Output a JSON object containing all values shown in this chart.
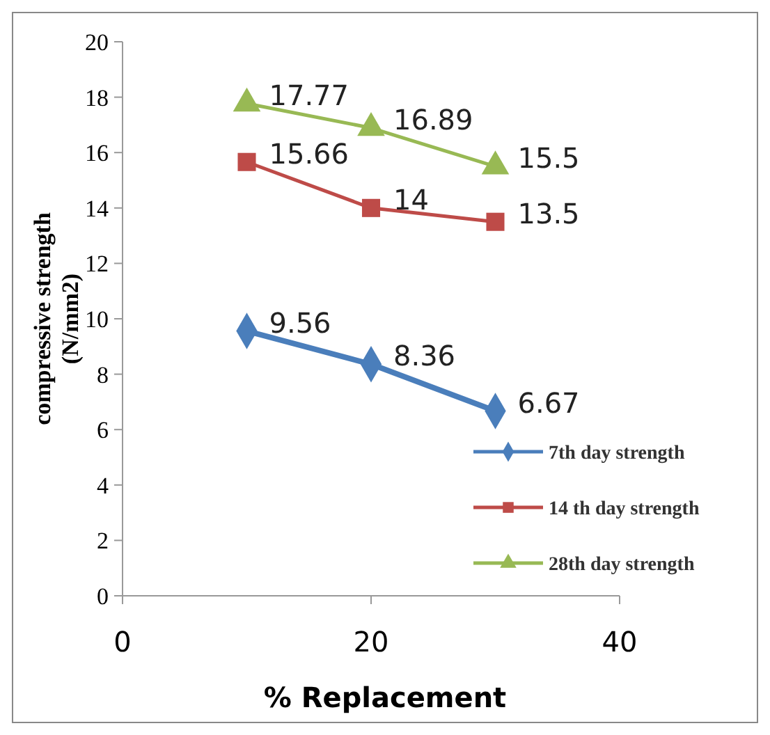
{
  "chart_data": {
    "type": "line",
    "xlabel": "% Replacement",
    "ylabel": "compressive strength (N/mm2)",
    "x": [
      10,
      20,
      30
    ],
    "series": [
      {
        "name": "7th day strength",
        "color": "#4a7ebb",
        "values": [
          9.56,
          8.36,
          6.67
        ],
        "marker": "diamond"
      },
      {
        "name": "14 th day strength",
        "color": "#be4b48",
        "values": [
          15.66,
          14,
          13.5
        ],
        "marker": "square"
      },
      {
        "name": "28th day strength",
        "color": "#98b954",
        "values": [
          17.77,
          16.89,
          15.5
        ],
        "marker": "triangle"
      }
    ],
    "xlim": [
      0,
      40
    ],
    "xticks": [
      0,
      20,
      40
    ],
    "ylim": [
      0,
      20
    ],
    "yticks": [
      0,
      2,
      4,
      6,
      8,
      10,
      12,
      14,
      16,
      18,
      20
    ],
    "data_labels": true,
    "legend": "bottom right",
    "grid": false
  }
}
